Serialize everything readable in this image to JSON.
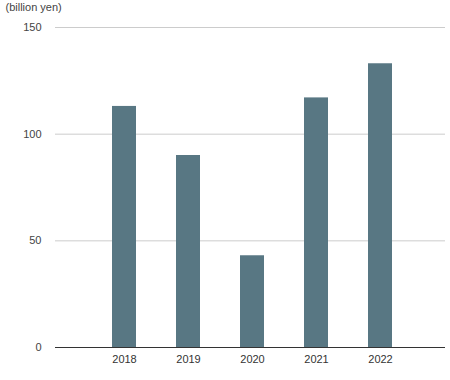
{
  "chart_data": {
    "type": "bar",
    "ylabel": "(billion yen)",
    "categories": [
      "2018",
      "2019",
      "2020",
      "2021",
      "2022"
    ],
    "values": [
      113,
      90,
      43,
      117,
      133
    ],
    "color": "#587783",
    "ylim": [
      0,
      150
    ],
    "yticks": [
      0,
      50,
      100,
      150
    ],
    "grid": true
  }
}
